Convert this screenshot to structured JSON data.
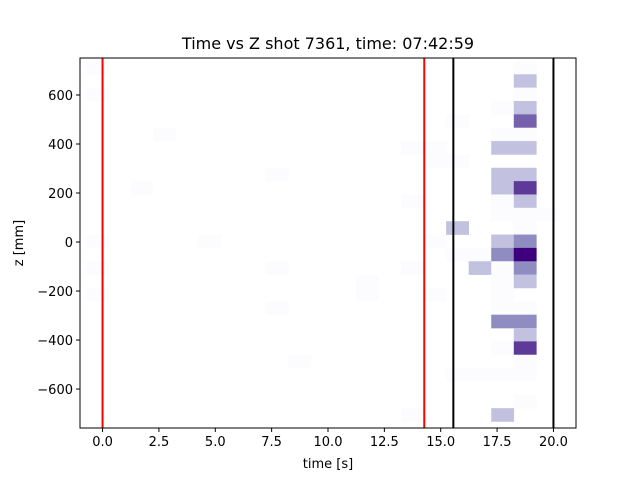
{
  "chart_data": {
    "type": "heatmap",
    "title": "Time vs Z shot 7361, time: 07:42:59",
    "xlabel": "time [s]",
    "ylabel": "z [mm]",
    "xlim": [
      -1,
      21
    ],
    "ylim": [
      -759,
      751
    ],
    "x_ticks": [
      0,
      2.5,
      5,
      7.5,
      10,
      12.5,
      15,
      17.5,
      20
    ],
    "x_tick_labels": [
      "0.0",
      "2.5",
      "5.0",
      "7.5",
      "10.0",
      "12.5",
      "15.0",
      "17.5",
      "20.0"
    ],
    "y_ticks": [
      -600,
      -400,
      -200,
      0,
      200,
      400,
      600
    ],
    "y_tick_labels": [
      "−600",
      "−400",
      "−200",
      "0",
      "200",
      "400",
      "600"
    ],
    "grid": false,
    "colormap": "Purples",
    "count_colors": {
      "1": "#fcfbfd",
      "2": "#c2c2e0",
      "3": "#8e8cc0",
      "4": "#7661ac",
      "5": "#5e3a98",
      "6": "#3f007d"
    },
    "time_bin_start": -0.76,
    "time_bin_width": 1.0,
    "z_bin_top": 739,
    "z_bin_height": 54.5,
    "cells_note": "each cell: [time_bin_index, z_bin_index_from_top, count]",
    "cells": [
      [
        0,
        0,
        1
      ],
      [
        0,
        2,
        1
      ],
      [
        0,
        13,
        1
      ],
      [
        0,
        15,
        1
      ],
      [
        0,
        17,
        1
      ],
      [
        2,
        9,
        1
      ],
      [
        3,
        5,
        1
      ],
      [
        5,
        13,
        1
      ],
      [
        8,
        8,
        1
      ],
      [
        8,
        15,
        1
      ],
      [
        8,
        18,
        1
      ],
      [
        9,
        22,
        1
      ],
      [
        12,
        16,
        1
      ],
      [
        12,
        17,
        1
      ],
      [
        14,
        6,
        1
      ],
      [
        14,
        10,
        1
      ],
      [
        14,
        15,
        1
      ],
      [
        14,
        26,
        1
      ],
      [
        15,
        6,
        1
      ],
      [
        15,
        7,
        1
      ],
      [
        15,
        13,
        1
      ],
      [
        15,
        17,
        1
      ],
      [
        16,
        4,
        1
      ],
      [
        16,
        7,
        1
      ],
      [
        16,
        12,
        2
      ],
      [
        16,
        14,
        1
      ],
      [
        16,
        23,
        1
      ],
      [
        17,
        14,
        1
      ],
      [
        17,
        15,
        2
      ],
      [
        17,
        23,
        1
      ],
      [
        18,
        3,
        1
      ],
      [
        18,
        5,
        1
      ],
      [
        18,
        6,
        2
      ],
      [
        18,
        8,
        2
      ],
      [
        18,
        9,
        2
      ],
      [
        18,
        10,
        1
      ],
      [
        18,
        11,
        1
      ],
      [
        18,
        13,
        2
      ],
      [
        18,
        14,
        3
      ],
      [
        18,
        15,
        1
      ],
      [
        18,
        16,
        1
      ],
      [
        18,
        17,
        1
      ],
      [
        18,
        18,
        1
      ],
      [
        18,
        19,
        3
      ],
      [
        18,
        21,
        1
      ],
      [
        18,
        23,
        1
      ],
      [
        18,
        26,
        2
      ],
      [
        19,
        0,
        1
      ],
      [
        19,
        1,
        2
      ],
      [
        19,
        2,
        1
      ],
      [
        19,
        3,
        2
      ],
      [
        19,
        4,
        4
      ],
      [
        19,
        5,
        1
      ],
      [
        19,
        6,
        2
      ],
      [
        19,
        8,
        2
      ],
      [
        19,
        9,
        5
      ],
      [
        19,
        10,
        2
      ],
      [
        19,
        11,
        1
      ],
      [
        19,
        12,
        1
      ],
      [
        19,
        13,
        3
      ],
      [
        19,
        14,
        6
      ],
      [
        19,
        15,
        3
      ],
      [
        19,
        16,
        2
      ],
      [
        19,
        18,
        1
      ],
      [
        19,
        19,
        3
      ],
      [
        19,
        20,
        2
      ],
      [
        19,
        21,
        5
      ],
      [
        19,
        22,
        1
      ],
      [
        19,
        23,
        1
      ],
      [
        19,
        25,
        1
      ],
      [
        20,
        11,
        1
      ]
    ],
    "vertical_lines": [
      {
        "x": 0.0,
        "color": "#ff0000"
      },
      {
        "x": 14.27,
        "color": "#ff0000"
      },
      {
        "x": 15.56,
        "color": "#000000"
      },
      {
        "x": 20.0,
        "color": "#000000"
      }
    ]
  }
}
